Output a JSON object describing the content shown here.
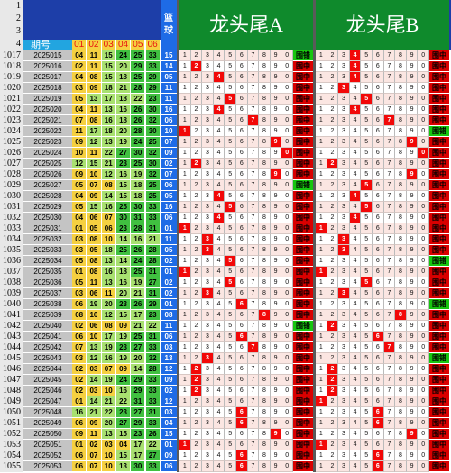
{
  "header": {
    "row_labels": [
      "1",
      "2",
      "3",
      "4"
    ],
    "period_label": "期号",
    "col_labels": [
      "01",
      "02",
      "03",
      "04",
      "05",
      "06"
    ],
    "blue_label": [
      "篮",
      "球"
    ],
    "title_a": "龙头尾A",
    "title_b": "龙头尾B"
  },
  "grid_digits": [
    "1",
    "2",
    "3",
    "4",
    "5",
    "6",
    "7",
    "8",
    "9",
    "0"
  ],
  "colors": {
    "red": "#f20808",
    "green_a": "#a8e070",
    "green_b": "#40c040",
    "yellow": "#f5d040",
    "dark_yellow": "#e8b000",
    "blue": "#1e6be6"
  },
  "rows": [
    {
      "n": "1017",
      "p": "2025015",
      "nums": [
        "04",
        "11",
        "15",
        "24",
        "25",
        "33"
      ],
      "b": "15",
      "a": [],
      "ra": "围错",
      "b2": [
        4
      ],
      "rb": "围中"
    },
    {
      "n": "1018",
      "p": "2025016",
      "nums": [
        "02",
        "11",
        "15",
        "20",
        "29",
        "33"
      ],
      "b": "14",
      "a": [
        2
      ],
      "ra": "围中",
      "b2": [
        4
      ],
      "rb": "围中"
    },
    {
      "n": "1019",
      "p": "2025017",
      "nums": [
        "04",
        "08",
        "15",
        "18",
        "25",
        "29"
      ],
      "b": "05",
      "a": [
        4
      ],
      "ra": "围中",
      "b2": [
        4
      ],
      "rb": "围中"
    },
    {
      "n": "1020",
      "p": "2025018",
      "nums": [
        "03",
        "09",
        "18",
        "21",
        "28",
        "29"
      ],
      "b": "11",
      "a": [],
      "ra": "围中",
      "b2": [
        3
      ],
      "rb": "围中"
    },
    {
      "n": "1021",
      "p": "2025019",
      "nums": [
        "05",
        "13",
        "17",
        "18",
        "22",
        "23"
      ],
      "b": "11",
      "a": [
        5
      ],
      "ra": "围中",
      "b2": [
        5
      ],
      "rb": "围中"
    },
    {
      "n": "1022",
      "p": "2025020",
      "nums": [
        "04",
        "11",
        "13",
        "16",
        "26",
        "30"
      ],
      "b": "16",
      "a": [
        4
      ],
      "ra": "围中",
      "b2": [
        4
      ],
      "rb": "围中"
    },
    {
      "n": "1023",
      "p": "2025021",
      "nums": [
        "07",
        "08",
        "16",
        "18",
        "26",
        "32"
      ],
      "b": "06",
      "a": [
        7
      ],
      "ra": "围中",
      "b2": [
        7
      ],
      "rb": "围中"
    },
    {
      "n": "1024",
      "p": "2025022",
      "nums": [
        "11",
        "17",
        "18",
        "20",
        "28",
        "30"
      ],
      "b": "10",
      "a": [
        1
      ],
      "ra": "围中",
      "b2": [],
      "rb": "围错"
    },
    {
      "n": "1025",
      "p": "2025023",
      "nums": [
        "09",
        "12",
        "13",
        "19",
        "24",
        "25"
      ],
      "b": "07",
      "a": [
        9
      ],
      "ra": "围中",
      "b2": [
        9
      ],
      "rb": "围中"
    },
    {
      "n": "1026",
      "p": "2025024",
      "nums": [
        "10",
        "11",
        "22",
        "27",
        "30",
        "32"
      ],
      "b": "09",
      "a": [
        0
      ],
      "ra": "围中",
      "b2": [
        0
      ],
      "rb": "围中"
    },
    {
      "n": "1027",
      "p": "2025025",
      "nums": [
        "12",
        "15",
        "21",
        "23",
        "25",
        "30"
      ],
      "b": "02",
      "a": [
        2
      ],
      "ra": "围中",
      "b2": [
        2
      ],
      "rb": "围中"
    },
    {
      "n": "1028",
      "p": "2025026",
      "nums": [
        "09",
        "10",
        "12",
        "16",
        "19",
        "32"
      ],
      "b": "07",
      "a": [
        9
      ],
      "ra": "围中",
      "b2": [
        9
      ],
      "rb": "围中"
    },
    {
      "n": "1029",
      "p": "2025027",
      "nums": [
        "05",
        "07",
        "08",
        "15",
        "18",
        "25"
      ],
      "b": "06",
      "a": [],
      "ra": "围错",
      "b2": [
        5
      ],
      "rb": "围中"
    },
    {
      "n": "1030",
      "p": "2025028",
      "nums": [
        "04",
        "09",
        "14",
        "15",
        "18",
        "25"
      ],
      "b": "05",
      "a": [
        4
      ],
      "ra": "围中",
      "b2": [
        4
      ],
      "rb": "围中"
    },
    {
      "n": "1031",
      "p": "2025029",
      "nums": [
        "05",
        "15",
        "16",
        "25",
        "30",
        "33"
      ],
      "b": "16",
      "a": [
        5
      ],
      "ra": "围中",
      "b2": [
        5
      ],
      "rb": "围中"
    },
    {
      "n": "1032",
      "p": "2025030",
      "nums": [
        "04",
        "06",
        "07",
        "30",
        "31",
        "33"
      ],
      "b": "06",
      "a": [
        4
      ],
      "ra": "围中",
      "b2": [
        4
      ],
      "rb": "围中"
    },
    {
      "n": "1033",
      "p": "2025031",
      "nums": [
        "01",
        "05",
        "06",
        "23",
        "28",
        "31"
      ],
      "b": "01",
      "a": [
        1
      ],
      "ra": "围中",
      "b2": [
        1
      ],
      "rb": "围中"
    },
    {
      "n": "1034",
      "p": "2025032",
      "nums": [
        "03",
        "08",
        "10",
        "14",
        "16",
        "21"
      ],
      "b": "11",
      "a": [
        3
      ],
      "ra": "围中",
      "b2": [
        3
      ],
      "rb": "围中"
    },
    {
      "n": "1035",
      "p": "2025033",
      "nums": [
        "03",
        "05",
        "18",
        "25",
        "26",
        "28"
      ],
      "b": "05",
      "a": [
        3
      ],
      "ra": "围中",
      "b2": [
        3
      ],
      "rb": "围中"
    },
    {
      "n": "1036",
      "p": "2025034",
      "nums": [
        "05",
        "08",
        "13",
        "14",
        "24",
        "28"
      ],
      "b": "02",
      "a": [
        5
      ],
      "ra": "围中",
      "b2": [],
      "rb": "围错"
    },
    {
      "n": "1037",
      "p": "2025035",
      "nums": [
        "01",
        "08",
        "16",
        "18",
        "25",
        "31"
      ],
      "b": "01",
      "a": [
        1
      ],
      "ra": "围中",
      "b2": [
        1
      ],
      "rb": "围中"
    },
    {
      "n": "1038",
      "p": "2025036",
      "nums": [
        "05",
        "11",
        "13",
        "16",
        "19",
        "27"
      ],
      "b": "02",
      "a": [
        5
      ],
      "ra": "围中",
      "b2": [
        5
      ],
      "rb": "围中"
    },
    {
      "n": "1039",
      "p": "2025037",
      "nums": [
        "03",
        "06",
        "11",
        "20",
        "21",
        "31"
      ],
      "b": "02",
      "a": [
        3
      ],
      "ra": "围中",
      "b2": [
        3
      ],
      "rb": "围中"
    },
    {
      "n": "1040",
      "p": "2025038",
      "nums": [
        "06",
        "19",
        "20",
        "23",
        "26",
        "29"
      ],
      "b": "01",
      "a": [
        6
      ],
      "ra": "围中",
      "b2": [],
      "rb": "围错"
    },
    {
      "n": "1041",
      "p": "2025039",
      "nums": [
        "08",
        "10",
        "12",
        "15",
        "17",
        "23"
      ],
      "b": "08",
      "a": [
        8
      ],
      "ra": "围中",
      "b2": [
        8
      ],
      "rb": "围中"
    },
    {
      "n": "1042",
      "p": "2025040",
      "nums": [
        "02",
        "06",
        "08",
        "09",
        "21",
        "22"
      ],
      "b": "11",
      "a": [],
      "ra": "围错",
      "b2": [
        2
      ],
      "rb": "围中"
    },
    {
      "n": "1043",
      "p": "2025041",
      "nums": [
        "06",
        "10",
        "17",
        "19",
        "25",
        "31"
      ],
      "b": "06",
      "a": [
        6
      ],
      "ra": "围中",
      "b2": [
        6
      ],
      "rb": "围中"
    },
    {
      "n": "1044",
      "p": "2025042",
      "nums": [
        "07",
        "13",
        "19",
        "23",
        "27",
        "33"
      ],
      "b": "03",
      "a": [
        7
      ],
      "ra": "围中",
      "b2": [
        7
      ],
      "rb": "围中"
    },
    {
      "n": "1045",
      "p": "2025043",
      "nums": [
        "03",
        "12",
        "16",
        "19",
        "20",
        "32"
      ],
      "b": "13",
      "a": [
        3
      ],
      "ra": "围中",
      "b2": [],
      "rb": "围错"
    },
    {
      "n": "1046",
      "p": "2025044",
      "nums": [
        "02",
        "03",
        "07",
        "09",
        "14",
        "28"
      ],
      "b": "12",
      "a": [
        2
      ],
      "ra": "围中",
      "b2": [
        2
      ],
      "rb": "围中"
    },
    {
      "n": "1047",
      "p": "2025045",
      "nums": [
        "02",
        "14",
        "19",
        "24",
        "29",
        "33"
      ],
      "b": "09",
      "a": [
        2
      ],
      "ra": "围中",
      "b2": [
        2
      ],
      "rb": "围中"
    },
    {
      "n": "1048",
      "p": "2025046",
      "nums": [
        "02",
        "03",
        "10",
        "16",
        "29",
        "33"
      ],
      "b": "02",
      "a": [
        2
      ],
      "ra": "围中",
      "b2": [
        2
      ],
      "rb": "围中"
    },
    {
      "n": "1049",
      "p": "2025047",
      "nums": [
        "01",
        "14",
        "21",
        "22",
        "31",
        "33"
      ],
      "b": "12",
      "a": [],
      "ra": "围中",
      "b2": [
        1
      ],
      "rb": "围中"
    },
    {
      "n": "1050",
      "p": "2025048",
      "nums": [
        "16",
        "21",
        "22",
        "23",
        "27",
        "31"
      ],
      "b": "03",
      "a": [
        6
      ],
      "ra": "围中",
      "b2": [
        6
      ],
      "rb": "围中"
    },
    {
      "n": "1051",
      "p": "2025049",
      "nums": [
        "06",
        "09",
        "20",
        "27",
        "29",
        "33"
      ],
      "b": "04",
      "a": [
        6
      ],
      "ra": "围中",
      "b2": [
        6
      ],
      "rb": "围中"
    },
    {
      "n": "1052",
      "p": "2025050",
      "nums": [
        "09",
        "11",
        "13",
        "15",
        "23",
        "26"
      ],
      "b": "15",
      "a": [
        9
      ],
      "ra": "围中",
      "b2": [
        9
      ],
      "rb": "围中"
    },
    {
      "n": "1053",
      "p": "2025051",
      "nums": [
        "01",
        "02",
        "03",
        "04",
        "17",
        "22"
      ],
      "b": "01",
      "a": [
        1
      ],
      "ra": "围中",
      "b2": [
        1
      ],
      "rb": "围中"
    },
    {
      "n": "1054",
      "p": "2025052",
      "nums": [
        "06",
        "07",
        "10",
        "15",
        "17",
        "27"
      ],
      "b": "09",
      "a": [
        6
      ],
      "ra": "围中",
      "b2": [
        6
      ],
      "rb": "围中"
    },
    {
      "n": "1055",
      "p": "2025053",
      "nums": [
        "06",
        "07",
        "10",
        "13",
        "30",
        "33"
      ],
      "b": "06",
      "a": [
        6
      ],
      "ra": "围中",
      "b2": [
        6
      ],
      "rb": "围中"
    }
  ],
  "last_row": {
    "n": "1056",
    "p": "2025054"
  }
}
